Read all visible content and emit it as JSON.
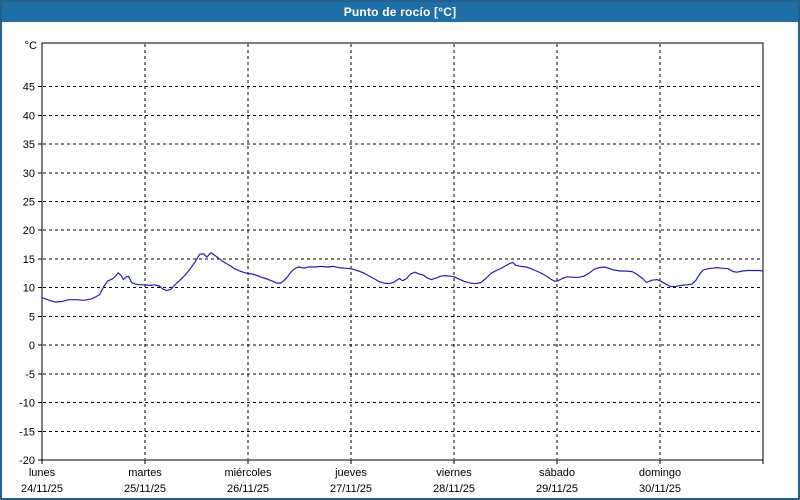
{
  "window": {
    "title": "Punto de rocío [°C]"
  },
  "colors": {
    "titlebar_bg": "#1f6fa6",
    "titlebar_text": "#ffffff",
    "outer_border": "#24618e",
    "background": "#fdfefd",
    "plot_background": "#ffffff",
    "frame": "#000000",
    "grid": "#000000",
    "line": "#2222b2",
    "text": "#000000"
  },
  "chart_data": {
    "type": "line",
    "title": "Punto de rocío [°C]",
    "ylabel": "°C",
    "unit_label": "°C",
    "grid": "dashed",
    "legend": "none",
    "ylim": [
      -20,
      52.6
    ],
    "xlim_days": [
      0,
      7
    ],
    "y_ticks": [
      45,
      40,
      35,
      30,
      25,
      20,
      15,
      10,
      5,
      0,
      -5,
      -10,
      -15,
      -20
    ],
    "x_days": [
      {
        "label": "lunes",
        "date": "24/11/25"
      },
      {
        "label": "martes",
        "date": "25/11/25"
      },
      {
        "label": "miércoles",
        "date": "26/11/25"
      },
      {
        "label": "jueves",
        "date": "27/11/25"
      },
      {
        "label": "viernes",
        "date": "28/11/25"
      },
      {
        "label": "sábado",
        "date": "29/11/25"
      },
      {
        "label": "domingo",
        "date": "30/11/25"
      }
    ],
    "series": [
      {
        "name": "Punto de rocío",
        "color": "#2222b2",
        "points": [
          [
            0.0,
            8.3
          ],
          [
            0.07,
            7.8
          ],
          [
            0.13,
            7.5
          ],
          [
            0.19,
            7.6
          ],
          [
            0.26,
            7.9
          ],
          [
            0.34,
            7.9
          ],
          [
            0.41,
            7.8
          ],
          [
            0.47,
            8.0
          ],
          [
            0.52,
            8.4
          ],
          [
            0.56,
            8.8
          ],
          [
            0.6,
            10.2
          ],
          [
            0.64,
            11.2
          ],
          [
            0.68,
            11.5
          ],
          [
            0.71,
            11.9
          ],
          [
            0.74,
            12.6
          ],
          [
            0.77,
            12.1
          ],
          [
            0.79,
            11.4
          ],
          [
            0.82,
            11.9
          ],
          [
            0.84,
            12.0
          ],
          [
            0.87,
            10.9
          ],
          [
            0.91,
            10.6
          ],
          [
            0.95,
            10.5
          ],
          [
            1.0,
            10.5
          ],
          [
            1.05,
            10.4
          ],
          [
            1.09,
            10.5
          ],
          [
            1.14,
            10.3
          ],
          [
            1.17,
            9.8
          ],
          [
            1.21,
            9.5
          ],
          [
            1.25,
            9.7
          ],
          [
            1.29,
            10.5
          ],
          [
            1.34,
            11.3
          ],
          [
            1.39,
            12.2
          ],
          [
            1.44,
            13.3
          ],
          [
            1.49,
            14.6
          ],
          [
            1.53,
            15.8
          ],
          [
            1.57,
            15.9
          ],
          [
            1.6,
            15.3
          ],
          [
            1.64,
            16.1
          ],
          [
            1.68,
            15.6
          ],
          [
            1.73,
            14.9
          ],
          [
            1.78,
            14.3
          ],
          [
            1.83,
            13.8
          ],
          [
            1.87,
            13.3
          ],
          [
            1.92,
            12.9
          ],
          [
            1.97,
            12.6
          ],
          [
            2.0,
            12.5
          ],
          [
            2.06,
            12.3
          ],
          [
            2.12,
            11.9
          ],
          [
            2.17,
            11.6
          ],
          [
            2.23,
            11.2
          ],
          [
            2.28,
            10.8
          ],
          [
            2.32,
            10.8
          ],
          [
            2.37,
            11.6
          ],
          [
            2.42,
            12.8
          ],
          [
            2.46,
            13.4
          ],
          [
            2.5,
            13.6
          ],
          [
            2.54,
            13.4
          ],
          [
            2.59,
            13.6
          ],
          [
            2.65,
            13.6
          ],
          [
            2.71,
            13.7
          ],
          [
            2.77,
            13.6
          ],
          [
            2.83,
            13.7
          ],
          [
            2.88,
            13.5
          ],
          [
            2.94,
            13.4
          ],
          [
            3.0,
            13.3
          ],
          [
            3.06,
            13.0
          ],
          [
            3.12,
            12.6
          ],
          [
            3.17,
            12.1
          ],
          [
            3.22,
            11.6
          ],
          [
            3.27,
            11.1
          ],
          [
            3.32,
            10.8
          ],
          [
            3.37,
            10.7
          ],
          [
            3.42,
            11.0
          ],
          [
            3.47,
            11.6
          ],
          [
            3.5,
            11.2
          ],
          [
            3.54,
            11.6
          ],
          [
            3.58,
            12.4
          ],
          [
            3.62,
            12.7
          ],
          [
            3.66,
            12.4
          ],
          [
            3.7,
            12.2
          ],
          [
            3.74,
            11.7
          ],
          [
            3.78,
            11.4
          ],
          [
            3.83,
            11.7
          ],
          [
            3.87,
            12.0
          ],
          [
            3.92,
            12.1
          ],
          [
            3.96,
            12.0
          ],
          [
            4.0,
            11.9
          ],
          [
            4.05,
            11.5
          ],
          [
            4.1,
            11.1
          ],
          [
            4.16,
            10.8
          ],
          [
            4.21,
            10.7
          ],
          [
            4.26,
            10.9
          ],
          [
            4.31,
            11.6
          ],
          [
            4.36,
            12.5
          ],
          [
            4.41,
            13.0
          ],
          [
            4.46,
            13.4
          ],
          [
            4.5,
            13.8
          ],
          [
            4.54,
            14.2
          ],
          [
            4.57,
            14.4
          ],
          [
            4.6,
            13.9
          ],
          [
            4.65,
            13.7
          ],
          [
            4.7,
            13.6
          ],
          [
            4.75,
            13.3
          ],
          [
            4.8,
            12.9
          ],
          [
            4.84,
            12.6
          ],
          [
            4.89,
            12.1
          ],
          [
            4.94,
            11.5
          ],
          [
            4.98,
            11.1
          ],
          [
            5.01,
            11.2
          ],
          [
            5.05,
            11.6
          ],
          [
            5.1,
            11.9
          ],
          [
            5.16,
            11.8
          ],
          [
            5.21,
            11.8
          ],
          [
            5.26,
            12.0
          ],
          [
            5.31,
            12.5
          ],
          [
            5.36,
            13.2
          ],
          [
            5.41,
            13.5
          ],
          [
            5.46,
            13.6
          ],
          [
            5.5,
            13.4
          ],
          [
            5.55,
            13.1
          ],
          [
            5.61,
            12.9
          ],
          [
            5.67,
            12.9
          ],
          [
            5.73,
            12.8
          ],
          [
            5.78,
            12.3
          ],
          [
            5.83,
            11.6
          ],
          [
            5.87,
            10.9
          ],
          [
            5.92,
            11.3
          ],
          [
            5.97,
            11.4
          ],
          [
            6.0,
            11.2
          ],
          [
            6.05,
            10.7
          ],
          [
            6.1,
            10.2
          ],
          [
            6.15,
            10.2
          ],
          [
            6.2,
            10.4
          ],
          [
            6.26,
            10.5
          ],
          [
            6.31,
            10.6
          ],
          [
            6.35,
            11.3
          ],
          [
            6.39,
            12.5
          ],
          [
            6.42,
            13.1
          ],
          [
            6.47,
            13.3
          ],
          [
            6.51,
            13.4
          ],
          [
            6.55,
            13.5
          ],
          [
            6.6,
            13.4
          ],
          [
            6.66,
            13.3
          ],
          [
            6.71,
            12.8
          ],
          [
            6.75,
            12.7
          ],
          [
            6.8,
            12.9
          ],
          [
            6.85,
            13.0
          ],
          [
            6.91,
            13.0
          ],
          [
            6.96,
            13.0
          ],
          [
            7.0,
            12.9
          ]
        ]
      }
    ]
  }
}
